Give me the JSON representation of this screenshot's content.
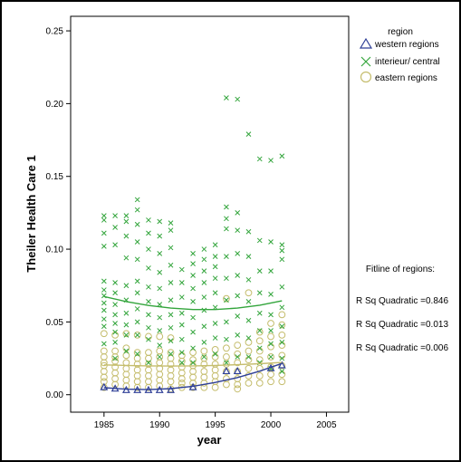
{
  "chart_data": {
    "type": "scatter",
    "xlabel": "year",
    "ylabel": "Theiler Health Care 1",
    "xlim": [
      1982,
      2007
    ],
    "ylim": [
      -0.012,
      0.26
    ],
    "x_ticks": [
      "1985",
      "1990",
      "1995",
      "2000",
      "2005"
    ],
    "x_tick_values": [
      1985,
      1990,
      1995,
      2000,
      2005
    ],
    "y_ticks": [
      "0.00",
      "0.05",
      "0.10",
      "0.15",
      "0.20",
      "0.25"
    ],
    "y_tick_values": [
      0,
      0.05,
      0.1,
      0.15,
      0.2,
      0.25
    ],
    "grid": false,
    "legend": {
      "title": "region",
      "placement": "top-right, outside plot",
      "entries": [
        "western regions",
        "interieur/ central",
        "eastern regions"
      ]
    },
    "fit_note": {
      "title": "Fitline of regions:",
      "lines": [
        "R Sq Quadratic =0.846",
        "R Sq Quadratic =0.013",
        "R Sq Quadratic =0.006"
      ]
    },
    "series": [
      {
        "name": "western regions",
        "marker": "triangle",
        "color": "#2e3f97",
        "x": [
          1985,
          1986,
          1987,
          1988,
          1989,
          1990,
          1991,
          1993,
          1996,
          1997,
          2000,
          2001
        ],
        "y": [
          0.005,
          0.004,
          0.003,
          0.003,
          0.003,
          0.003,
          0.003,
          0.005,
          0.016,
          0.016,
          0.018,
          0.02
        ],
        "fit": [
          [
            1985,
            0.0048
          ],
          [
            1987,
            0.0038
          ],
          [
            1989,
            0.0035
          ],
          [
            1991,
            0.0042
          ],
          [
            1993,
            0.0058
          ],
          [
            1995,
            0.0084
          ],
          [
            1997,
            0.0118
          ],
          [
            1999,
            0.0162
          ],
          [
            2001,
            0.0215
          ]
        ]
      },
      {
        "name": "interieur/ central",
        "marker": "x",
        "color": "#33a53c",
        "x": [
          1985,
          1985,
          1985,
          1985,
          1985,
          1985,
          1985,
          1985,
          1985,
          1985,
          1985,
          1985,
          1986,
          1986,
          1986,
          1986,
          1986,
          1986,
          1986,
          1986,
          1986,
          1986,
          1986,
          1987,
          1987,
          1987,
          1987,
          1987,
          1987,
          1987,
          1987,
          1987,
          1987,
          1988,
          1988,
          1988,
          1988,
          1988,
          1988,
          1988,
          1988,
          1988,
          1988,
          1988,
          1989,
          1989,
          1989,
          1989,
          1989,
          1989,
          1989,
          1989,
          1989,
          1989,
          1990,
          1990,
          1990,
          1990,
          1990,
          1990,
          1990,
          1990,
          1990,
          1990,
          1991,
          1991,
          1991,
          1991,
          1991,
          1991,
          1991,
          1991,
          1991,
          1991,
          1992,
          1992,
          1992,
          1992,
          1992,
          1992,
          1992,
          1992,
          1993,
          1993,
          1993,
          1993,
          1993,
          1993,
          1993,
          1993,
          1993,
          1994,
          1994,
          1994,
          1994,
          1994,
          1994,
          1994,
          1994,
          1994,
          1995,
          1995,
          1995,
          1995,
          1995,
          1995,
          1995,
          1995,
          1995,
          1996,
          1996,
          1996,
          1996,
          1996,
          1996,
          1996,
          1996,
          1996,
          1996,
          1997,
          1997,
          1997,
          1997,
          1997,
          1997,
          1997,
          1997,
          1997,
          1998,
          1998,
          1998,
          1998,
          1998,
          1998,
          1998,
          1998,
          1999,
          1999,
          1999,
          1999,
          1999,
          1999,
          1999,
          1999,
          2000,
          2000,
          2000,
          2000,
          2000,
          2000,
          2000,
          2000,
          2000,
          2001,
          2001,
          2001,
          2001,
          2001,
          2001,
          2001,
          2001,
          2001,
          2001
        ],
        "y": [
          0.123,
          0.12,
          0.111,
          0.102,
          0.078,
          0.072,
          0.068,
          0.063,
          0.058,
          0.052,
          0.047,
          0.035,
          0.123,
          0.115,
          0.103,
          0.077,
          0.07,
          0.062,
          0.055,
          0.049,
          0.043,
          0.036,
          0.025,
          0.123,
          0.119,
          0.109,
          0.094,
          0.075,
          0.065,
          0.056,
          0.048,
          0.041,
          0.03,
          0.134,
          0.127,
          0.117,
          0.105,
          0.093,
          0.078,
          0.07,
          0.059,
          0.05,
          0.041,
          0.028,
          0.12,
          0.111,
          0.1,
          0.087,
          0.074,
          0.064,
          0.055,
          0.046,
          0.038,
          0.022,
          0.119,
          0.109,
          0.097,
          0.084,
          0.073,
          0.062,
          0.053,
          0.044,
          0.034,
          0.026,
          0.118,
          0.113,
          0.101,
          0.089,
          0.077,
          0.065,
          0.055,
          0.046,
          0.037,
          0.028,
          0.086,
          0.077,
          0.067,
          0.056,
          0.048,
          0.038,
          0.029,
          0.022,
          0.097,
          0.09,
          0.082,
          0.073,
          0.064,
          0.053,
          0.043,
          0.032,
          0.022,
          0.1,
          0.093,
          0.085,
          0.077,
          0.067,
          0.058,
          0.047,
          0.036,
          0.026,
          0.103,
          0.095,
          0.088,
          0.08,
          0.07,
          0.06,
          0.049,
          0.039,
          0.028,
          0.204,
          0.129,
          0.121,
          0.114,
          0.095,
          0.08,
          0.065,
          0.05,
          0.038,
          0.022,
          0.203,
          0.125,
          0.113,
          0.097,
          0.082,
          0.068,
          0.054,
          0.041,
          0.026,
          0.179,
          0.112,
          0.095,
          0.079,
          0.064,
          0.051,
          0.039,
          0.026,
          0.162,
          0.106,
          0.085,
          0.07,
          0.056,
          0.044,
          0.032,
          0.022,
          0.161,
          0.105,
          0.085,
          0.069,
          0.055,
          0.044,
          0.035,
          0.026,
          0.018,
          0.164,
          0.103,
          0.099,
          0.093,
          0.074,
          0.06,
          0.047,
          0.036,
          0.025,
          0.016
        ],
        "fit": [
          [
            1985,
            0.0675
          ],
          [
            1987,
            0.064
          ],
          [
            1989,
            0.0613
          ],
          [
            1991,
            0.0595
          ],
          [
            1993,
            0.0585
          ],
          [
            1995,
            0.0585
          ],
          [
            1997,
            0.0595
          ],
          [
            1999,
            0.0615
          ],
          [
            2001,
            0.0645
          ]
        ]
      },
      {
        "name": "eastern regions",
        "marker": "circle",
        "color": "#c5bd6d",
        "x": [
          1985,
          1985,
          1985,
          1985,
          1985,
          1985,
          1985,
          1985,
          1985,
          1986,
          1986,
          1986,
          1986,
          1986,
          1986,
          1986,
          1986,
          1987,
          1987,
          1987,
          1987,
          1987,
          1987,
          1987,
          1987,
          1988,
          1988,
          1988,
          1988,
          1988,
          1988,
          1988,
          1988,
          1989,
          1989,
          1989,
          1989,
          1989,
          1989,
          1989,
          1989,
          1990,
          1990,
          1990,
          1990,
          1990,
          1990,
          1990,
          1990,
          1991,
          1991,
          1991,
          1991,
          1991,
          1991,
          1991,
          1991,
          1992,
          1992,
          1992,
          1992,
          1992,
          1992,
          1992,
          1993,
          1993,
          1993,
          1993,
          1993,
          1993,
          1993,
          1994,
          1994,
          1994,
          1994,
          1994,
          1994,
          1994,
          1995,
          1995,
          1995,
          1995,
          1995,
          1995,
          1995,
          1996,
          1996,
          1996,
          1996,
          1996,
          1996,
          1996,
          1997,
          1997,
          1997,
          1997,
          1997,
          1997,
          1997,
          1998,
          1998,
          1998,
          1998,
          1998,
          1998,
          1998,
          1999,
          1999,
          1999,
          1999,
          1999,
          1999,
          1999,
          2000,
          2000,
          2000,
          2000,
          2000,
          2000,
          2000,
          2001,
          2001,
          2001,
          2001,
          2001,
          2001,
          2001,
          2001
        ],
        "y": [
          0.042,
          0.03,
          0.026,
          0.022,
          0.02,
          0.016,
          0.012,
          0.009,
          0.005,
          0.041,
          0.03,
          0.026,
          0.023,
          0.019,
          0.015,
          0.011,
          0.007,
          0.042,
          0.032,
          0.027,
          0.022,
          0.018,
          0.014,
          0.01,
          0.006,
          0.041,
          0.029,
          0.025,
          0.021,
          0.017,
          0.013,
          0.009,
          0.005,
          0.04,
          0.029,
          0.025,
          0.021,
          0.017,
          0.013,
          0.009,
          0.005,
          0.04,
          0.03,
          0.026,
          0.022,
          0.018,
          0.014,
          0.01,
          0.006,
          0.039,
          0.029,
          0.025,
          0.021,
          0.017,
          0.013,
          0.009,
          0.004,
          0.027,
          0.023,
          0.019,
          0.015,
          0.011,
          0.008,
          0.005,
          0.029,
          0.024,
          0.02,
          0.016,
          0.012,
          0.008,
          0.005,
          0.03,
          0.025,
          0.021,
          0.016,
          0.012,
          0.008,
          0.005,
          0.031,
          0.026,
          0.021,
          0.017,
          0.013,
          0.009,
          0.005,
          0.066,
          0.032,
          0.026,
          0.021,
          0.016,
          0.011,
          0.007,
          0.034,
          0.028,
          0.022,
          0.016,
          0.011,
          0.007,
          0.004,
          0.07,
          0.036,
          0.03,
          0.024,
          0.018,
          0.013,
          0.008,
          0.043,
          0.037,
          0.03,
          0.024,
          0.018,
          0.013,
          0.008,
          0.049,
          0.04,
          0.033,
          0.026,
          0.019,
          0.014,
          0.009,
          0.055,
          0.048,
          0.041,
          0.034,
          0.027,
          0.02,
          0.014,
          0.009
        ],
        "fit": [
          [
            1985,
            0.0205
          ],
          [
            1987,
            0.0201
          ],
          [
            1989,
            0.0198
          ],
          [
            1991,
            0.0197
          ],
          [
            1993,
            0.0198
          ],
          [
            1995,
            0.0201
          ],
          [
            1997,
            0.0206
          ],
          [
            1999,
            0.0213
          ],
          [
            2001,
            0.0222
          ]
        ]
      }
    ]
  }
}
